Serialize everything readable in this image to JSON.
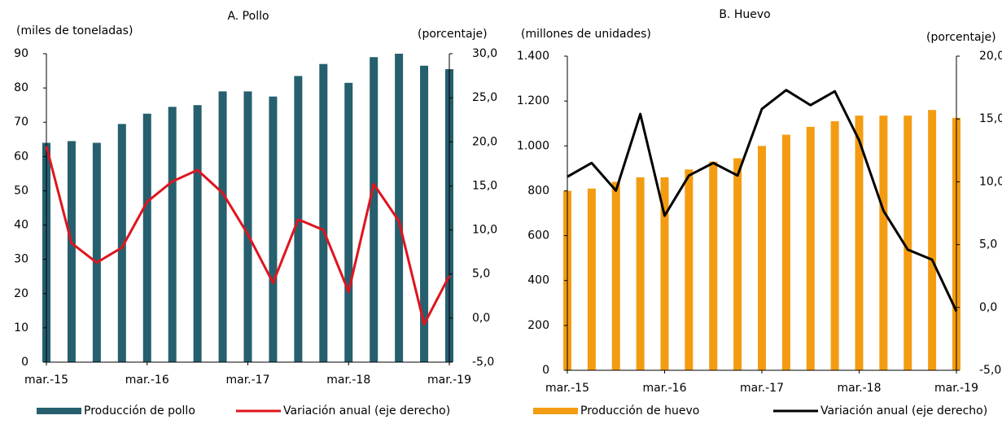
{
  "chart_data": [
    {
      "type": "combo",
      "title": "A. Pollo",
      "y_label": "(miles de toneladas)",
      "y2_label": "(porcentaje)",
      "categories": [
        "mar.-15",
        null,
        null,
        null,
        "mar.-16",
        null,
        null,
        null,
        "mar.-17",
        null,
        null,
        null,
        "mar.-18",
        null,
        null,
        null,
        "mar.-19"
      ],
      "series": [
        {
          "name": "Producción de pollo",
          "kind": "bar",
          "color": "#265f6e",
          "values": [
            64,
            64.5,
            64,
            69.5,
            72.5,
            74.5,
            75,
            79,
            79,
            77.5,
            83.5,
            87,
            81.5,
            89,
            90,
            86.5,
            85.5
          ]
        },
        {
          "name": "Variación anual (eje derecho)",
          "kind": "line",
          "axis": "y2",
          "color": "#e0141e",
          "values": [
            19.5,
            8.5,
            6.3,
            8,
            13.2,
            15.5,
            16.8,
            14.2,
            9.5,
            4,
            11.2,
            10,
            3,
            15.2,
            11,
            -0.7,
            4.8
          ]
        }
      ],
      "ylim": [
        0,
        90
      ],
      "yticks": [
        0,
        10,
        20,
        30,
        40,
        50,
        60,
        70,
        80,
        90
      ],
      "y2lim": [
        -5,
        30
      ],
      "y2ticks": [
        {
          "value": -5,
          "label": "-5,0"
        },
        {
          "value": 0,
          "label": "0,0"
        },
        {
          "value": 5,
          "label": "5,0"
        },
        {
          "value": 10,
          "label": "10,0"
        },
        {
          "value": 15,
          "label": "15,0"
        },
        {
          "value": 20,
          "label": "20,0"
        },
        {
          "value": 25,
          "label": "25,0"
        },
        {
          "value": 30,
          "label": "30,0"
        }
      ]
    },
    {
      "type": "combo",
      "title": "B. Huevo",
      "y_label": "(millones  de unidades)",
      "y2_label": "(porcentaje)",
      "categories": [
        "mar.-15",
        null,
        null,
        null,
        "mar.-16",
        null,
        null,
        null,
        "mar.-17",
        null,
        null,
        null,
        "mar.-18",
        null,
        null,
        null,
        "mar.-19"
      ],
      "series": [
        {
          "name": "Producción de huevo",
          "kind": "bar",
          "color": "#f39c12",
          "values": [
            800,
            810,
            840,
            860,
            860,
            895,
            930,
            945,
            1000,
            1050,
            1085,
            1110,
            1135,
            1135,
            1135,
            1160,
            1125
          ]
        },
        {
          "name": "Variación anual (eje derecho)",
          "kind": "line",
          "axis": "y2",
          "color": "#000000",
          "values": [
            10.4,
            11.5,
            9.3,
            15.4,
            7.3,
            10.5,
            11.5,
            10.5,
            15.8,
            17.3,
            16.1,
            17.2,
            13.3,
            7.7,
            4.6,
            3.8,
            -0.3
          ]
        }
      ],
      "ylim": [
        0,
        1400
      ],
      "yticks": [
        0,
        200,
        400,
        600,
        800,
        {
          "value": 1000,
          "label": "1.000"
        },
        {
          "value": 1200,
          "label": "1.200"
        },
        {
          "value": 1400,
          "label": "1.400"
        }
      ],
      "y2lim": [
        -5,
        20
      ],
      "y2ticks": [
        {
          "value": -5,
          "label": "-5,0"
        },
        {
          "value": 0,
          "label": "0,0"
        },
        {
          "value": 5,
          "label": "5,0"
        },
        {
          "value": 10,
          "label": "10,0"
        },
        {
          "value": 15,
          "label": "15,0"
        },
        {
          "value": 20,
          "label": "20,0"
        }
      ]
    }
  ]
}
